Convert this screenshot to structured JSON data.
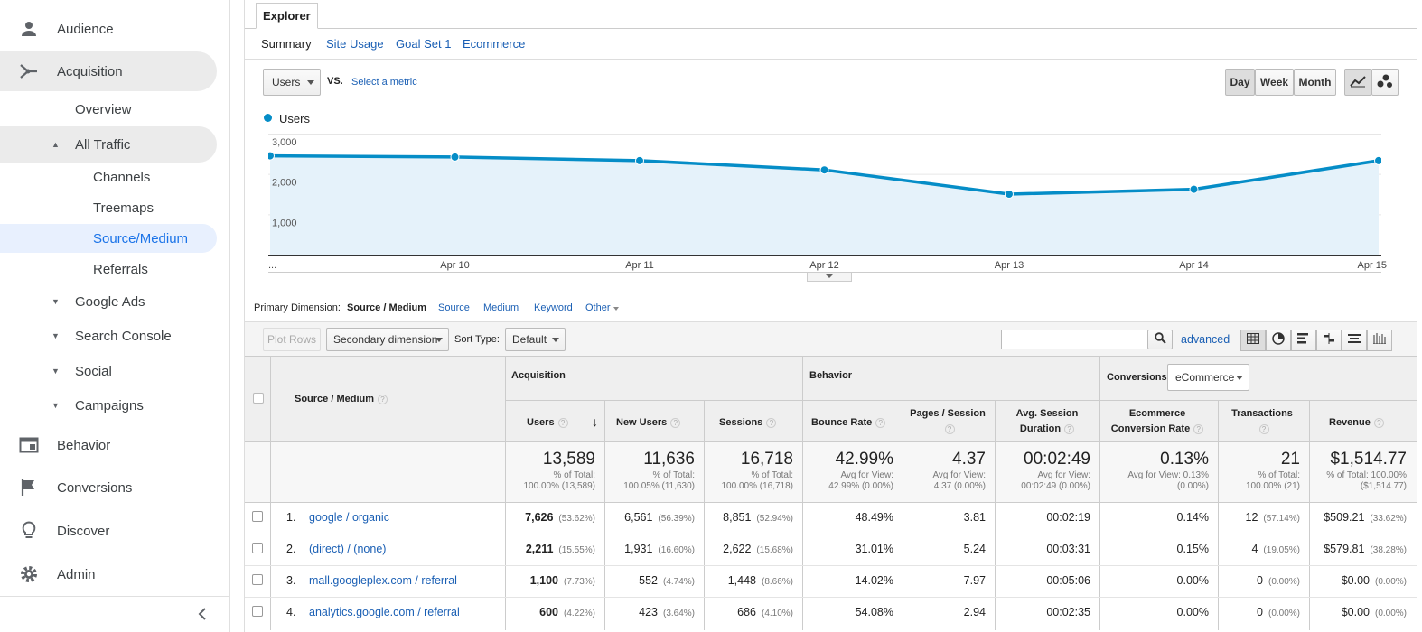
{
  "sidebar": {
    "audience": "Audience",
    "acquisition": "Acquisition",
    "overview": "Overview",
    "all_traffic": "All Traffic",
    "channels": "Channels",
    "treemaps": "Treemaps",
    "source_medium": "Source/Medium",
    "referrals": "Referrals",
    "google_ads": "Google Ads",
    "search_console": "Search Console",
    "social": "Social",
    "campaigns": "Campaigns",
    "behavior": "Behavior",
    "conversions": "Conversions",
    "discover": "Discover",
    "admin": "Admin"
  },
  "explorer": {
    "tab": "Explorer",
    "subtabs": [
      "Summary",
      "Site Usage",
      "Goal Set 1",
      "Ecommerce"
    ]
  },
  "controls": {
    "metric": "Users",
    "vs": "VS.",
    "select_metric": "Select a metric",
    "day": "Day",
    "week": "Week",
    "month": "Month"
  },
  "chart_data": {
    "type": "area",
    "series": [
      {
        "name": "Users",
        "values": [
          2450,
          2420,
          2330,
          2100,
          1500,
          1620,
          2330
        ]
      }
    ],
    "x": [
      "...",
      "Apr 10",
      "Apr 11",
      "Apr 12",
      "Apr 13",
      "Apr 14",
      "Apr 15"
    ],
    "yticks": [
      "3,000",
      "2,000",
      "1,000"
    ],
    "ylim": [
      0,
      3000
    ],
    "colors": {
      "line": "#058dc7",
      "fill": "#e5f2fa"
    }
  },
  "primary_dimension": {
    "label": "Primary Dimension:",
    "active": "Source / Medium",
    "options": [
      "Source",
      "Medium",
      "Keyword",
      "Other"
    ]
  },
  "toolbar": {
    "plot_rows": "Plot Rows",
    "secondary_dimension": "Secondary dimension",
    "sort_type_label": "Sort Type:",
    "sort_type_value": "Default",
    "advanced": "advanced"
  },
  "table": {
    "dim_header": "Source / Medium",
    "groups": {
      "acquisition": "Acquisition",
      "behavior": "Behavior",
      "conversions": "Conversions",
      "conversions_select": "eCommerce"
    },
    "columns": [
      "Users",
      "New Users",
      "Sessions",
      "Bounce Rate",
      "Pages / Session",
      "Avg. Session Duration",
      "Ecommerce Conversion Rate",
      "Transactions",
      "Revenue"
    ],
    "totals": [
      {
        "big": "13,589",
        "l1": "% of Total:",
        "l2": "100.00% (13,589)"
      },
      {
        "big": "11,636",
        "l1": "% of Total:",
        "l2": "100.05% (11,630)"
      },
      {
        "big": "16,718",
        "l1": "% of Total:",
        "l2": "100.00% (16,718)"
      },
      {
        "big": "42.99%",
        "l1": "Avg for View:",
        "l2": "42.99% (0.00%)"
      },
      {
        "big": "4.37",
        "l1": "Avg for View:",
        "l2": "4.37 (0.00%)"
      },
      {
        "big": "00:02:49",
        "l1": "Avg for View:",
        "l2": "00:02:49 (0.00%)"
      },
      {
        "big": "0.13%",
        "l1": "Avg for View: 0.13%",
        "l2": "(0.00%)"
      },
      {
        "big": "21",
        "l1": "% of Total:",
        "l2": "100.00% (21)"
      },
      {
        "big": "$1,514.77",
        "l1": "% of Total: 100.00%",
        "l2": "($1,514.77)"
      }
    ],
    "rows": [
      {
        "num": "1.",
        "dim": "google / organic",
        "users": "7,626",
        "users_pct": "(53.62%)",
        "new_users": "6,561",
        "new_users_pct": "(56.39%)",
        "sessions": "8,851",
        "sessions_pct": "(52.94%)",
        "bounce": "48.49%",
        "pps": "3.81",
        "duration": "00:02:19",
        "conv": "0.14%",
        "trans": "12",
        "trans_pct": "(57.14%)",
        "revenue": "$509.21",
        "revenue_pct": "(33.62%)"
      },
      {
        "num": "2.",
        "dim": "(direct) / (none)",
        "users": "2,211",
        "users_pct": "(15.55%)",
        "new_users": "1,931",
        "new_users_pct": "(16.60%)",
        "sessions": "2,622",
        "sessions_pct": "(15.68%)",
        "bounce": "31.01%",
        "pps": "5.24",
        "duration": "00:03:31",
        "conv": "0.15%",
        "trans": "4",
        "trans_pct": "(19.05%)",
        "revenue": "$579.81",
        "revenue_pct": "(38.28%)"
      },
      {
        "num": "3.",
        "dim": "mall.googleplex.com / referral",
        "users": "1,100",
        "users_pct": "(7.73%)",
        "new_users": "552",
        "new_users_pct": "(4.74%)",
        "sessions": "1,448",
        "sessions_pct": "(8.66%)",
        "bounce": "14.02%",
        "pps": "7.97",
        "duration": "00:05:06",
        "conv": "0.00%",
        "trans": "0",
        "trans_pct": "(0.00%)",
        "revenue": "$0.00",
        "revenue_pct": "(0.00%)"
      },
      {
        "num": "4.",
        "dim": "analytics.google.com / referral",
        "users": "600",
        "users_pct": "(4.22%)",
        "new_users": "423",
        "new_users_pct": "(3.64%)",
        "sessions": "686",
        "sessions_pct": "(4.10%)",
        "bounce": "54.08%",
        "pps": "2.94",
        "duration": "00:02:35",
        "conv": "0.00%",
        "trans": "0",
        "trans_pct": "(0.00%)",
        "revenue": "$0.00",
        "revenue_pct": "(0.00%)"
      }
    ]
  }
}
